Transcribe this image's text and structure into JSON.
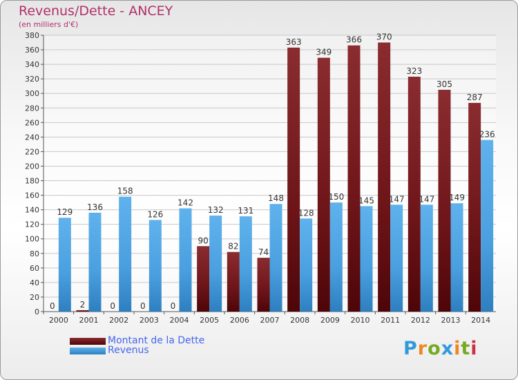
{
  "title": "Revenus/Dette - ANCEY",
  "subtitle": "(en milliers d'€)",
  "logo": {
    "text": "Proxiti",
    "letters": [
      "P",
      "r",
      "o",
      "x",
      "i",
      "t",
      "i"
    ],
    "colors": [
      "#3399dd",
      "#ee8822",
      "#77aa22",
      "#3399dd",
      "#ee8822",
      "#77aa22",
      "#cc3344"
    ]
  },
  "legend": [
    {
      "label": "Montant de la Dette",
      "color": "#6b0e14"
    },
    {
      "label": "Revenus",
      "color": "#4fa6e4"
    }
  ],
  "chart_data": {
    "type": "bar",
    "categories": [
      "2000",
      "2001",
      "2002",
      "2003",
      "2004",
      "2005",
      "2006",
      "2007",
      "2008",
      "2009",
      "2010",
      "2011",
      "2012",
      "2013",
      "2014"
    ],
    "series": [
      {
        "name": "Montant de la Dette",
        "color": "#7b1a1e",
        "values": [
          0,
          2,
          0,
          0,
          0,
          90,
          82,
          74,
          363,
          349,
          366,
          370,
          323,
          305,
          287
        ]
      },
      {
        "name": "Revenus",
        "color": "#4fa6e4",
        "values": [
          129,
          136,
          158,
          126,
          142,
          132,
          131,
          148,
          128,
          150,
          145,
          147,
          147,
          149,
          236
        ]
      }
    ],
    "ylim": [
      0,
      380
    ],
    "yticks": [
      0,
      20,
      40,
      60,
      80,
      100,
      120,
      140,
      160,
      180,
      200,
      220,
      240,
      260,
      280,
      300,
      320,
      340,
      360,
      380
    ],
    "grid": true,
    "xlabel": "",
    "ylabel": ""
  }
}
